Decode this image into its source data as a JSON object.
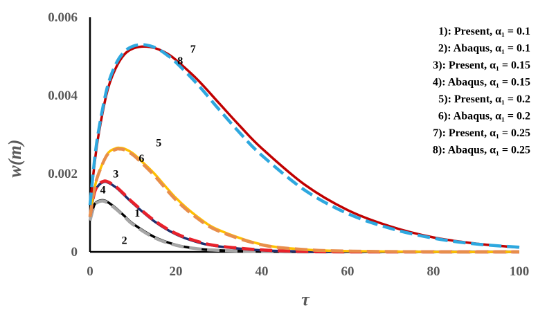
{
  "chart_data": {
    "type": "line",
    "xlabel": "τ",
    "ylabel": "w(m)",
    "xlim": [
      0,
      100
    ],
    "ylim": [
      0,
      0.006
    ],
    "xticks": [
      "0",
      "20",
      "40",
      "60",
      "80",
      "100"
    ],
    "yticks": [
      "0",
      "0.002",
      "0.004",
      "0.006"
    ],
    "grid": false,
    "legend_position": "top-right",
    "legend": [
      "1): Present, α₁ = 0.1",
      "2): Abaqus, α₁ = 0.1",
      "3): Present, α₁ = 0.15",
      "4): Abaqus, α₁ = 0.15",
      "5): Present, α₁ = 0.2",
      "6): Abaqus, α₁ = 0.2",
      "7): Present, α₁ = 0.25",
      "8): Abaqus, α₁ = 0.25"
    ],
    "series": [
      {
        "name": "1",
        "color": "#000000",
        "dash": "solid",
        "x": [
          0,
          1,
          2,
          3,
          4,
          6,
          8,
          10,
          15,
          20,
          25,
          30,
          40,
          50,
          60,
          80,
          100
        ],
        "y": [
          0.0008,
          0.0012,
          0.0013,
          0.00132,
          0.00128,
          0.00112,
          0.00092,
          0.00072,
          0.00038,
          0.00018,
          8e-05,
          4e-05,
          1e-05,
          0.0,
          0.0,
          0.0,
          0.0
        ]
      },
      {
        "name": "2",
        "color": "#a6a6a6",
        "dash": "dashed",
        "x": [
          0,
          1,
          2,
          3,
          4,
          6,
          8,
          10,
          15,
          20,
          25,
          30,
          40,
          50,
          60,
          80,
          100
        ],
        "y": [
          0.0008,
          0.00118,
          0.00128,
          0.0013,
          0.00126,
          0.0011,
          0.0009,
          0.0007,
          0.00036,
          0.00017,
          8e-05,
          4e-05,
          1e-05,
          0.0,
          0.0,
          0.0,
          0.0
        ]
      },
      {
        "name": "3",
        "color": "#1f2f6e",
        "dash": "solid",
        "x": [
          0,
          1,
          2,
          3,
          4,
          6,
          8,
          10,
          15,
          20,
          25,
          30,
          40,
          50,
          60,
          80,
          100
        ],
        "y": [
          0.0009,
          0.0015,
          0.0017,
          0.00178,
          0.00178,
          0.00165,
          0.00145,
          0.00124,
          0.00078,
          0.00045,
          0.00025,
          0.00014,
          4e-05,
          1e-05,
          0.0,
          0.0,
          0.0
        ]
      },
      {
        "name": "4",
        "color": "#e8212b",
        "dash": "dashed",
        "x": [
          0,
          1,
          2,
          3,
          4,
          6,
          8,
          10,
          15,
          20,
          25,
          30,
          40,
          50,
          60,
          80,
          100
        ],
        "y": [
          0.0009,
          0.0015,
          0.00172,
          0.0018,
          0.0018,
          0.00167,
          0.00147,
          0.00126,
          0.0008,
          0.00047,
          0.00027,
          0.00015,
          5e-05,
          1e-05,
          0.0,
          0.0,
          0.0
        ]
      },
      {
        "name": "5",
        "color": "#ffc000",
        "dash": "solid",
        "x": [
          0,
          1,
          2,
          4,
          6,
          7,
          8,
          10,
          12,
          15,
          20,
          25,
          30,
          40,
          50,
          60,
          80,
          100
        ],
        "y": [
          0.0009,
          0.0016,
          0.002,
          0.0025,
          0.00265,
          0.00266,
          0.00264,
          0.00252,
          0.00232,
          0.002,
          0.00138,
          0.0009,
          0.00056,
          0.00019,
          6e-05,
          2e-05,
          0.0,
          0.0
        ]
      },
      {
        "name": "6",
        "color": "#e88e4b",
        "dash": "dashed",
        "x": [
          0,
          1,
          2,
          4,
          6,
          7,
          8,
          10,
          12,
          15,
          20,
          25,
          30,
          40,
          50,
          60,
          80,
          100
        ],
        "y": [
          0.0009,
          0.0016,
          0.002,
          0.00248,
          0.00262,
          0.00263,
          0.00261,
          0.00248,
          0.00228,
          0.00195,
          0.00133,
          0.00086,
          0.00053,
          0.00018,
          6e-05,
          2e-05,
          0.0,
          0.0
        ]
      },
      {
        "name": "7",
        "color": "#c00000",
        "dash": "solid",
        "x": [
          0,
          1,
          2,
          4,
          6,
          8,
          10,
          12,
          14,
          16,
          18,
          20,
          25,
          30,
          35,
          40,
          50,
          60,
          70,
          80,
          90,
          100
        ],
        "y": [
          0.0012,
          0.0022,
          0.003,
          0.0041,
          0.0047,
          0.00505,
          0.0052,
          0.00525,
          0.00524,
          0.00518,
          0.00507,
          0.00491,
          0.00441,
          0.00381,
          0.00321,
          0.00265,
          0.00172,
          0.00107,
          0.00065,
          0.00037,
          0.00021,
          0.00011
        ]
      },
      {
        "name": "8",
        "color": "#2ea8df",
        "dash": "dashed",
        "x": [
          0,
          1,
          2,
          4,
          6,
          8,
          10,
          12,
          14,
          16,
          18,
          20,
          25,
          30,
          35,
          40,
          50,
          60,
          70,
          80,
          90,
          100
        ],
        "y": [
          0.0012,
          0.0023,
          0.0031,
          0.0042,
          0.0048,
          0.00512,
          0.00526,
          0.0053,
          0.00527,
          0.00518,
          0.00503,
          0.00485,
          0.00429,
          0.00365,
          0.00303,
          0.00247,
          0.00158,
          0.00098,
          0.0006,
          0.00035,
          0.0002,
          0.00012
        ]
      }
    ],
    "curve_labels": [
      {
        "text": "1",
        "x": 11,
        "y": 0.0009
      },
      {
        "text": "2",
        "x": 8,
        "y": 0.0002
      },
      {
        "text": "3",
        "x": 6,
        "y": 0.0019
      },
      {
        "text": "4",
        "x": 3,
        "y": 0.0015
      },
      {
        "text": "5",
        "x": 16,
        "y": 0.0027
      },
      {
        "text": "6",
        "x": 12,
        "y": 0.0023
      },
      {
        "text": "7",
        "x": 24,
        "y": 0.0051
      },
      {
        "text": "8",
        "x": 21,
        "y": 0.0048
      }
    ]
  }
}
